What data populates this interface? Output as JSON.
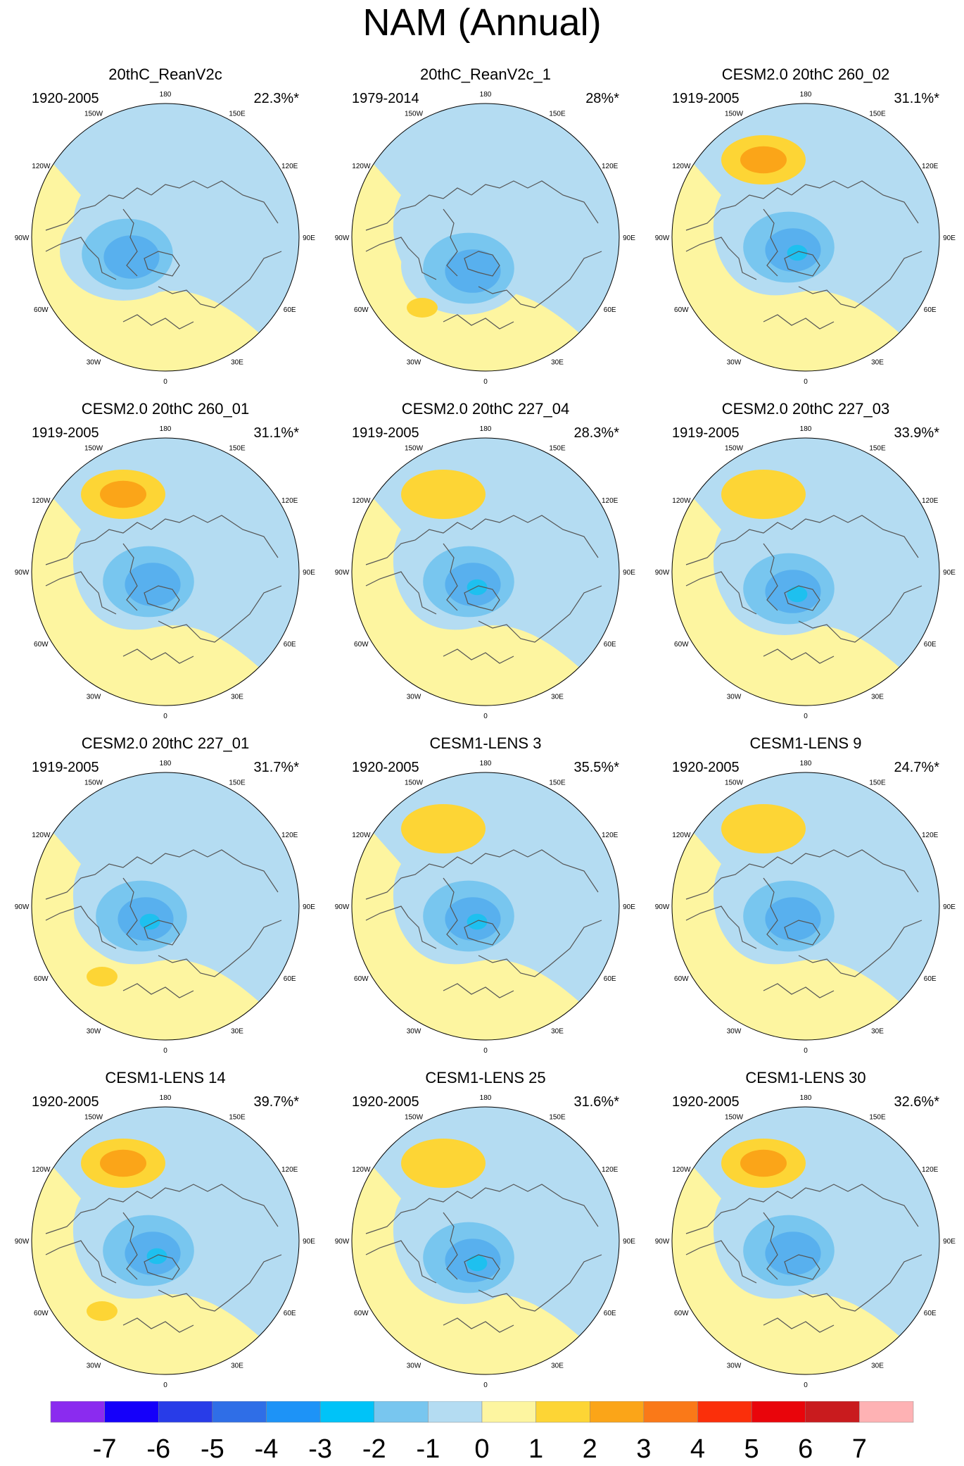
{
  "title": "NAM (Annual)",
  "colors": {
    "neg_light": "#b4dcf2",
    "neg_1": "#78c6ef",
    "neg_2": "#58b0ee",
    "neg_3": "#1ec0ef",
    "pos_light": "#fdf5a0",
    "pos_1": "#fdd535",
    "pos_2": "#fba518",
    "coast": "#555555"
  },
  "lon_labels": [
    "180",
    "150E",
    "120E",
    "90E",
    "60E",
    "30E",
    "0",
    "30W",
    "60W",
    "90W",
    "120W",
    "150W"
  ],
  "panels": [
    {
      "title": "20thC_ReanV2c",
      "period": "1920-2005",
      "variance": "22.3%*",
      "pattern": {
        "pos_peak": 0,
        "neg_peak": 2,
        "shift": [
          -30,
          10
        ],
        "extra_pos": false
      }
    },
    {
      "title": "20thC_ReanV2c_1",
      "period": "1979-2014",
      "variance": "28%*",
      "pattern": {
        "pos_peak": 0,
        "neg_peak": 2,
        "shift": [
          0,
          30
        ],
        "extra_pos": true
      }
    },
    {
      "title": "CESM2.0 20thC 260_02",
      "period": "1919-2005",
      "variance": "31.1%*",
      "pattern": {
        "pos_peak": 2,
        "neg_peak": 3,
        "shift": [
          0,
          0
        ],
        "extra_pos": false
      }
    },
    {
      "title": "CESM2.0 20thC 260_01",
      "period": "1919-2005",
      "variance": "31.1%*",
      "pattern": {
        "pos_peak": 2,
        "neg_peak": 2,
        "shift": [
          0,
          0
        ],
        "extra_pos": false
      }
    },
    {
      "title": "CESM2.0 20thC 227_04",
      "period": "1919-2005",
      "variance": "28.3%*",
      "pattern": {
        "pos_peak": 1,
        "neg_peak": 3,
        "shift": [
          0,
          0
        ],
        "extra_pos": false
      }
    },
    {
      "title": "CESM2.0 20thC 227_03",
      "period": "1919-2005",
      "variance": "33.9%*",
      "pattern": {
        "pos_peak": 1,
        "neg_peak": 3,
        "shift": [
          0,
          10
        ],
        "extra_pos": false
      }
    },
    {
      "title": "CESM2.0 20thC 227_01",
      "period": "1919-2005",
      "variance": "31.7%*",
      "pattern": {
        "pos_peak": 0,
        "neg_peak": 3,
        "shift": [
          -10,
          0
        ],
        "extra_pos": true
      }
    },
    {
      "title": "CESM1-LENS 3",
      "period": "1920-2005",
      "variance": "35.5%*",
      "pattern": {
        "pos_peak": 1,
        "neg_peak": 3,
        "shift": [
          0,
          0
        ],
        "extra_pos": false
      }
    },
    {
      "title": "CESM1-LENS 9",
      "period": "1920-2005",
      "variance": "24.7%*",
      "pattern": {
        "pos_peak": 1,
        "neg_peak": 2,
        "shift": [
          0,
          0
        ],
        "extra_pos": false
      }
    },
    {
      "title": "CESM1-LENS 14",
      "period": "1920-2005",
      "variance": "39.7%*",
      "pattern": {
        "pos_peak": 2,
        "neg_peak": 3,
        "shift": [
          0,
          0
        ],
        "extra_pos": true
      }
    },
    {
      "title": "CESM1-LENS 25",
      "period": "1920-2005",
      "variance": "31.6%*",
      "pattern": {
        "pos_peak": 1,
        "neg_peak": 3,
        "shift": [
          0,
          10
        ],
        "extra_pos": false
      }
    },
    {
      "title": "CESM1-LENS 30",
      "period": "1920-2005",
      "variance": "32.6%*",
      "pattern": {
        "pos_peak": 2,
        "neg_peak": 2,
        "shift": [
          0,
          0
        ],
        "extra_pos": false
      }
    }
  ],
  "colorbar": {
    "colors": [
      "#8b2bef",
      "#1500fa",
      "#283ce8",
      "#2f6ee7",
      "#1d93f7",
      "#00c3f8",
      "#78c6ef",
      "#b4dcf2",
      "#fdf5a0",
      "#fdd535",
      "#fba518",
      "#fa7918",
      "#fb2f0a",
      "#e9050b",
      "#c91b1e",
      "#feb2b4"
    ],
    "labels": [
      "-7",
      "-6",
      "-5",
      "-4",
      "-3",
      "-2",
      "-1",
      "0",
      "1",
      "2",
      "3",
      "4",
      "5",
      "6",
      "7"
    ]
  }
}
